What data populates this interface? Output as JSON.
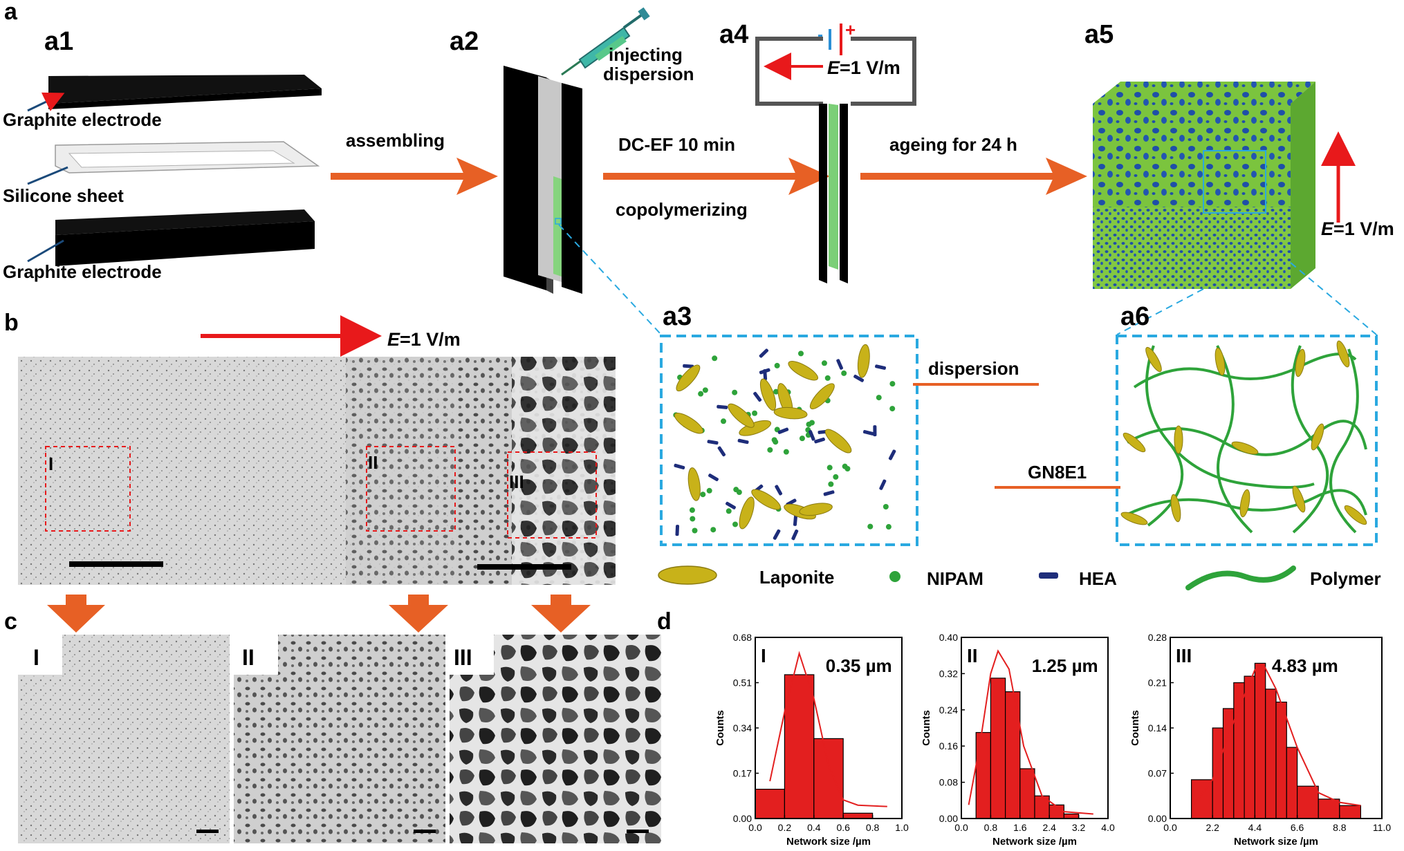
{
  "panel_a": {
    "label": "a",
    "a1": {
      "label": "a1",
      "top_electrode": "Graphite electrode",
      "spacer": "Silicone sheet",
      "bottom_electrode": "Graphite electrode"
    },
    "a2": {
      "label": "a2",
      "syringe_text_1": "injecting",
      "syringe_text_2": "dispersion"
    },
    "a4": {
      "label": "a4",
      "minus": "-",
      "plus": "+",
      "field_italic": "E",
      "field_value": "=1 V/m"
    },
    "a5": {
      "label": "a5",
      "field_italic": "E",
      "field_value": "=1 V/m"
    },
    "arrow_1": "assembling",
    "arrow_2_top": "DC-EF 10 min",
    "arrow_2_bottom": "copolymerizing",
    "arrow_3": "ageing for 24 h",
    "a3": {
      "label": "a3",
      "callout": "dispersion"
    },
    "a6": {
      "label": "a6",
      "callout": "GN8E1"
    },
    "legend": [
      "Laponite",
      "NIPAM",
      "HEA",
      "Polymer"
    ]
  },
  "panel_b": {
    "label": "b",
    "field_italic": "E",
    "field_value": "=1 V/m",
    "regions": [
      "I",
      "II",
      "III"
    ]
  },
  "panel_c": {
    "label": "c",
    "images": [
      "I",
      "II",
      "III"
    ]
  },
  "panel_d": {
    "label": "d"
  },
  "chart_data": [
    {
      "type": "bar",
      "panel_label": "I",
      "annotation": "0.35 µm",
      "xlabel": "Network size /µm",
      "ylabel": "Counts",
      "xlim": [
        0.0,
        1.0
      ],
      "ylim": [
        0.0,
        0.68
      ],
      "xticks": [
        "0.0",
        "0.2",
        "0.4",
        "0.6",
        "0.8",
        "1.0"
      ],
      "yticks": [
        "0.00",
        "0.17",
        "0.34",
        "0.51",
        "0.68"
      ],
      "bins": [
        [
          0.0,
          0.2
        ],
        [
          0.2,
          0.4
        ],
        [
          0.4,
          0.6
        ],
        [
          0.6,
          0.8
        ]
      ],
      "values": [
        0.11,
        0.54,
        0.3,
        0.02
      ],
      "fit": [
        [
          0.1,
          0.14
        ],
        [
          0.2,
          0.4
        ],
        [
          0.3,
          0.62
        ],
        [
          0.4,
          0.45
        ],
        [
          0.5,
          0.2
        ],
        [
          0.6,
          0.07
        ],
        [
          0.7,
          0.05
        ],
        [
          0.9,
          0.045
        ]
      ]
    },
    {
      "type": "bar",
      "panel_label": "II",
      "annotation": "1.25 µm",
      "xlabel": "Network size /µm",
      "ylabel": "Counts",
      "xlim": [
        0.0,
        4.0
      ],
      "ylim": [
        0.0,
        0.4
      ],
      "xticks": [
        "0.0",
        "0.8",
        "1.6",
        "2.4",
        "3.2",
        "4.0"
      ],
      "yticks": [
        "0.00",
        "0.08",
        "0.16",
        "0.24",
        "0.32",
        "0.40"
      ],
      "bins": [
        [
          0.4,
          0.8
        ],
        [
          0.8,
          1.2
        ],
        [
          1.2,
          1.6
        ],
        [
          1.6,
          2.0
        ],
        [
          2.0,
          2.4
        ],
        [
          2.4,
          2.8
        ],
        [
          2.8,
          3.2
        ],
        [
          3.2,
          3.6
        ],
        [
          3.6,
          4.0
        ]
      ],
      "values": [
        0.19,
        0.31,
        0.28,
        0.11,
        0.05,
        0.03,
        0.01,
        0.0,
        0.0
      ],
      "fit": [
        [
          0.2,
          0.03
        ],
        [
          0.5,
          0.16
        ],
        [
          0.8,
          0.32
        ],
        [
          1.0,
          0.37
        ],
        [
          1.3,
          0.33
        ],
        [
          1.7,
          0.16
        ],
        [
          2.2,
          0.05
        ],
        [
          2.8,
          0.015
        ],
        [
          3.6,
          0.01
        ]
      ]
    },
    {
      "type": "bar",
      "panel_label": "III",
      "annotation": "4.83 µm",
      "xlabel": "Network size /µm",
      "ylabel": "Counts",
      "xlim": [
        0.0,
        11.0
      ],
      "ylim": [
        0.0,
        0.28
      ],
      "xticks": [
        "0.0",
        "2.2",
        "4.4",
        "6.6",
        "8.8",
        "11.0"
      ],
      "yticks": [
        "0.00",
        "0.07",
        "0.14",
        "0.21",
        "0.28"
      ],
      "bins": [
        [
          1.1,
          2.2
        ],
        [
          2.2,
          2.75
        ],
        [
          2.75,
          3.3
        ],
        [
          3.3,
          3.85
        ],
        [
          3.85,
          4.4
        ],
        [
          4.4,
          4.95
        ],
        [
          4.95,
          5.5
        ],
        [
          5.5,
          6.05
        ],
        [
          6.05,
          6.6
        ],
        [
          6.6,
          7.7
        ],
        [
          7.7,
          8.8
        ],
        [
          8.8,
          9.9
        ]
      ],
      "values": [
        0.06,
        0.14,
        0.17,
        0.21,
        0.22,
        0.24,
        0.2,
        0.18,
        0.11,
        0.05,
        0.03,
        0.02
      ],
      "fit": [
        [
          1.2,
          0.02
        ],
        [
          2.2,
          0.06
        ],
        [
          3.3,
          0.15
        ],
        [
          4.4,
          0.23
        ],
        [
          4.9,
          0.235
        ],
        [
          5.5,
          0.2
        ],
        [
          6.6,
          0.11
        ],
        [
          7.7,
          0.04
        ],
        [
          8.8,
          0.025
        ],
        [
          9.9,
          0.02
        ]
      ]
    }
  ],
  "colors": {
    "accent_red": "#e8191b",
    "orange": "#e76025",
    "cyan": "#2aa9e0",
    "bar_red": "#e31f1f",
    "olive": "#c8b219",
    "green": "#2ea33a",
    "navy": "#1e2d7a"
  }
}
